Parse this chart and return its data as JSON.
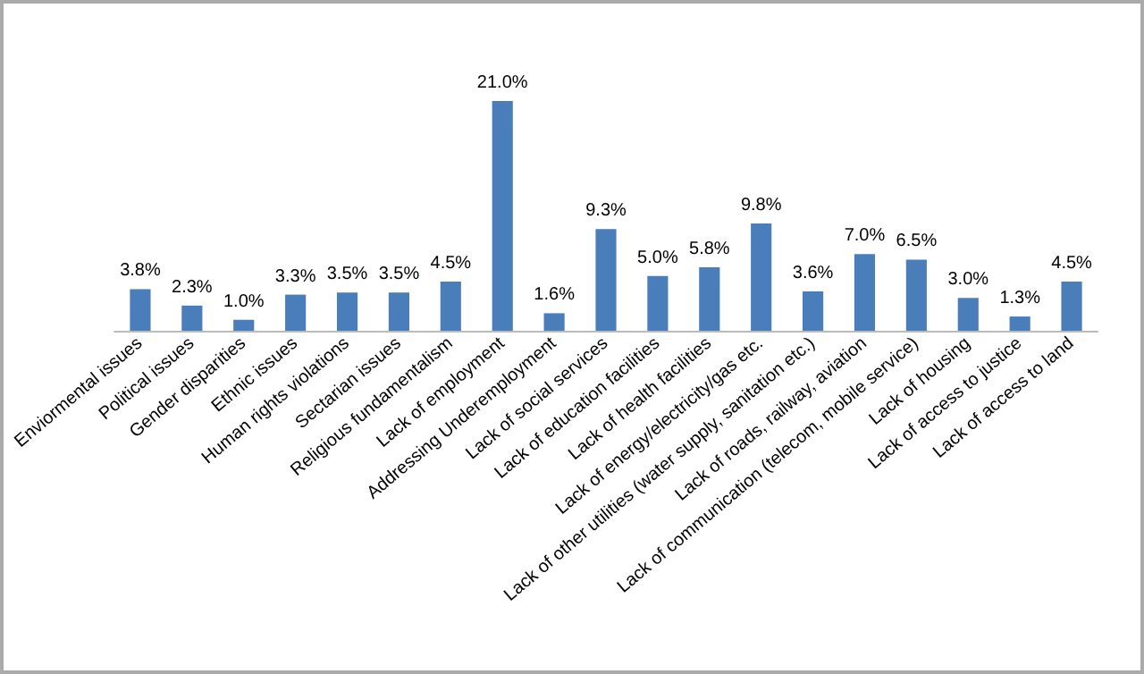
{
  "chart_data": {
    "type": "bar",
    "categories": [
      "Enviormental issues",
      "Political issues",
      "Gender disparities",
      "Ethnic issues",
      "Human rights violations",
      "Sectarian issues",
      "Religious fundamentalism",
      "Lack of employment",
      "Addressing Underemployment",
      "Lack of social services",
      "Lack of education facilities",
      "Lack of health facilities",
      "Lack of energy/electricity/gas etc.",
      "Lack of other utilities (water supply, sanitation etc.)",
      "Lack of roads, railway, aviation",
      "Lack of communication (telecom, mobile service)",
      "Lack of housing",
      "Lack of access to justice",
      "Lack of access to land"
    ],
    "values": [
      3.8,
      2.3,
      1.0,
      3.3,
      3.5,
      3.5,
      4.5,
      21.0,
      1.6,
      9.3,
      5.0,
      5.8,
      9.8,
      3.6,
      7.0,
      6.5,
      3.0,
      1.3,
      4.5
    ],
    "value_labels": [
      "3.8%",
      "2.3%",
      "1.0%",
      "3.3%",
      "3.5%",
      "3.5%",
      "4.5%",
      "21.0%",
      "1.6%",
      "9.3%",
      "5.0%",
      "5.8%",
      "9.8%",
      "3.6%",
      "7.0%",
      "6.5%",
      "3.0%",
      "1.3%",
      "4.5%"
    ],
    "color": "#4a7ebb"
  }
}
